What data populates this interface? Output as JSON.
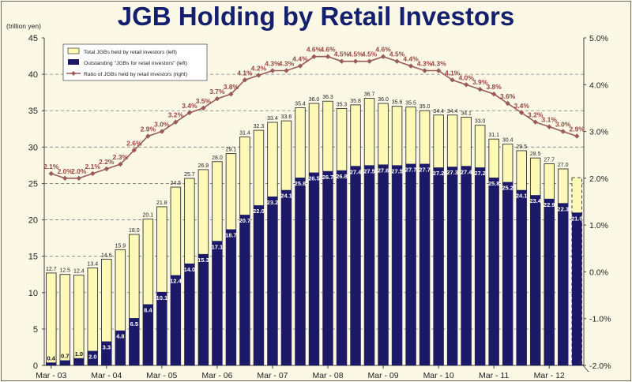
{
  "chart_data": {
    "type": "bar",
    "title": "JGB Holding by Retail Investors",
    "ylabel": "(trillion yen)",
    "ylim": [
      0,
      45
    ],
    "yticks": [
      "0",
      "5",
      "10",
      "15",
      "20",
      "25",
      "30",
      "35",
      "40",
      "45"
    ],
    "y2lim": [
      -2.0,
      5.0
    ],
    "y2ticks": [
      "-2.0%",
      "-1.0%",
      "0.0%",
      "1.0%",
      "2.0%",
      "3.0%",
      "4.0%",
      "5.0%"
    ],
    "xticks": [
      {
        "label": "Mar - 03",
        "index": 0
      },
      {
        "label": "Mar - 04",
        "index": 4
      },
      {
        "label": "Mar - 05",
        "index": 8
      },
      {
        "label": "Mar - 06",
        "index": 12
      },
      {
        "label": "Mar - 07",
        "index": 16
      },
      {
        "label": "Mar - 08",
        "index": 20
      },
      {
        "label": "Mar - 09",
        "index": 24
      },
      {
        "label": "Mar - 10",
        "index": 28
      },
      {
        "label": "Mar - 11",
        "index": 32
      },
      {
        "label": "Mar - 12",
        "index": 36
      }
    ],
    "grid": true,
    "legend_position": "top-left",
    "series": [
      {
        "name": "Total JGBs held by retail investors (left)",
        "type": "bar",
        "color": "#fdfab8",
        "values": [
          12.7,
          12.5,
          12.4,
          13.4,
          14.6,
          15.9,
          18.0,
          20.1,
          21.8,
          24.5,
          25.7,
          26.9,
          28.0,
          29.1,
          31.4,
          32.3,
          33.4,
          33.6,
          35.4,
          36.0,
          36.3,
          35.3,
          35.8,
          36.7,
          36.0,
          35.6,
          35.5,
          35.0,
          34.4,
          34.4,
          34.1,
          33.0,
          31.1,
          30.4,
          29.5,
          28.5,
          27.7,
          27.0,
          25.8
        ],
        "labels": [
          "12.7",
          "12.5",
          "12.4",
          "13.4",
          "14.6",
          "15.9",
          "18.0",
          "20.1",
          "21.8",
          "24.5",
          "25.7",
          "26.9",
          "28.0",
          "29.1",
          "31.4",
          "32.3",
          "33.4",
          "33.6",
          "35.4",
          "36.0",
          "36.3",
          "35.3",
          "35.8",
          "36.7",
          "36.0",
          "35.6",
          "35.5",
          "35.0",
          "34.4",
          "34.4",
          "34.1",
          "33.0",
          "31.1",
          "30.4",
          "29.5",
          "28.5",
          "27.7",
          "27.0",
          ""
        ]
      },
      {
        "name": "Outstanding \"JGBs for retail investors\" (left)",
        "type": "bar",
        "color": "#1c1a68",
        "values": [
          0.4,
          0.7,
          1.0,
          2.0,
          3.3,
          4.8,
          6.5,
          8.4,
          10.1,
          12.4,
          14.0,
          15.3,
          17.1,
          18.7,
          20.7,
          22.0,
          23.2,
          24.1,
          25.8,
          26.5,
          26.7,
          26.8,
          27.4,
          27.5,
          27.6,
          27.5,
          27.7,
          27.7,
          27.2,
          27.3,
          27.4,
          27.2,
          25.8,
          25.2,
          24.1,
          23.4,
          22.9,
          22.3,
          21.0
        ],
        "labels": [
          "0.4",
          "0.7",
          "1.0",
          "2.0",
          "3.3",
          "4.8",
          "6.5",
          "8.4",
          "10.1",
          "12.4",
          "14.0",
          "15.3",
          "17.1",
          "18.7",
          "20.7",
          "22.0",
          "23.2",
          "24.1",
          "25.8",
          "26.5",
          "26.7",
          "26.8",
          "27.4",
          "27.5",
          "27.6",
          "27.5",
          "27.7",
          "27.7",
          "27.2",
          "27.3",
          "27.4",
          "27.2",
          "25.8",
          "25.2",
          "24.1",
          "23.4",
          "22.9",
          "22.3",
          "21.0"
        ]
      },
      {
        "name": "Ratio of JGBs held by retail investors (right)",
        "type": "line",
        "axis": "right",
        "color": "#9b5a5a",
        "values": [
          2.1,
          2.0,
          2.0,
          2.1,
          2.2,
          2.3,
          2.6,
          2.9,
          3.0,
          3.2,
          3.4,
          3.5,
          3.7,
          3.8,
          4.1,
          4.2,
          4.3,
          4.3,
          4.4,
          4.6,
          4.6,
          4.5,
          4.5,
          4.5,
          4.6,
          4.5,
          4.4,
          4.3,
          4.3,
          4.1,
          4.0,
          3.9,
          3.8,
          3.6,
          3.4,
          3.2,
          3.1,
          3.0,
          2.9
        ],
        "labels": [
          "2.1%",
          "2.0%",
          "2.0%",
          "2.1%",
          "2.2%",
          "2.3%",
          "2.6%",
          "2.9%",
          "3.0%",
          "3.2%",
          "3.4%",
          "3.5%",
          "3.7%",
          "3.8%",
          "4.1%",
          "4.2%",
          "4.3%",
          "4.3%",
          "4.4%",
          "4.6%",
          "4.6%",
          "4.5%",
          "4.5%",
          "4.5%",
          "4.6%",
          "4.5%",
          "4.4%",
          "4.3%",
          "4.3%",
          "4.1%",
          "4.0%",
          "3.9%",
          "3.8%",
          "3.6%",
          "3.4%",
          "3.2%",
          "3.1%",
          "3.0%",
          "2.9%"
        ]
      }
    ]
  }
}
